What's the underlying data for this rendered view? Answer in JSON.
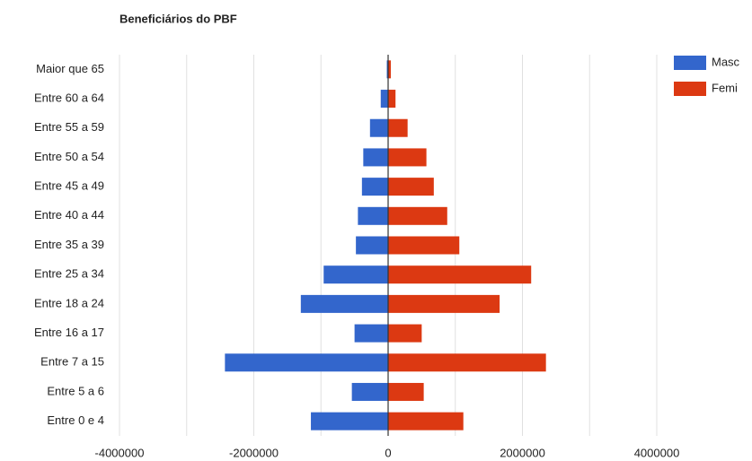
{
  "chart_data": {
    "type": "bar",
    "orientation": "horizontal",
    "title": "Beneficiários do PBF",
    "categories": [
      "Maior que 65",
      "Entre 60 a 64",
      "Entre 55 a 59",
      "Entre 50 a 54",
      "Entre 45 a 49",
      "Entre 40 a 44",
      "Entre 35 a 39",
      "Entre 25 a 34",
      "Entre 18 a 24",
      "Entre 16 a 17",
      "Entre 7 a 15",
      "Entre 5 a 6",
      "Entre 0 e 4"
    ],
    "series": [
      {
        "name": "Masc",
        "color": "#3366cc",
        "values": [
          -20000,
          -110000,
          -270000,
          -370000,
          -390000,
          -450000,
          -480000,
          -960000,
          -1300000,
          -500000,
          -2430000,
          -540000,
          -1150000
        ]
      },
      {
        "name": "Femi",
        "color": "#dc3912",
        "values": [
          40000,
          110000,
          290000,
          570000,
          680000,
          880000,
          1060000,
          2130000,
          1660000,
          500000,
          2350000,
          530000,
          1120000
        ]
      }
    ],
    "xlim": [
      -4000000,
      4000000
    ],
    "xticks": [
      -4000000,
      -2000000,
      0,
      2000000,
      4000000
    ],
    "xgrid": [
      -4000000,
      -3000000,
      -2000000,
      -1000000,
      0,
      1000000,
      2000000,
      3000000,
      4000000
    ],
    "grid": true,
    "legend": "right"
  }
}
